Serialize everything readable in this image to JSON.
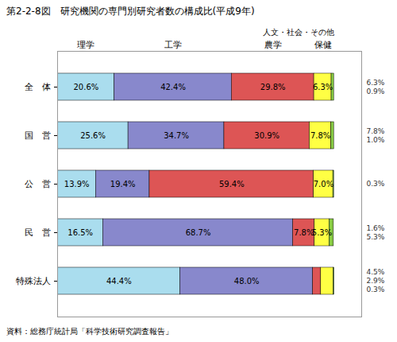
{
  "chart_data": {
    "type": "bar",
    "orientation": "horizontal",
    "stacked": true,
    "title": "第2-2-8図　研究機関の専門別研究者数の構成比(平成9年)",
    "source": "資料：総務庁統計局「科学技術研究調査報告」",
    "categories": [
      "全　体",
      "国　営",
      "公　営",
      "民　営",
      "特殊法人"
    ],
    "series": [
      {
        "name": "理学",
        "color": "#aaddee",
        "values": [
          20.6,
          25.6,
          13.9,
          16.5,
          44.4
        ],
        "value_labels": [
          "20.6%",
          "25.6%",
          "13.9%",
          "16.5%",
          "44.4%"
        ]
      },
      {
        "name": "工学",
        "color": "#8888cc",
        "values": [
          42.4,
          34.7,
          19.4,
          68.7,
          48.0
        ],
        "value_labels": [
          "42.4%",
          "34.7%",
          "19.4%",
          "68.7%",
          "48.0%"
        ]
      },
      {
        "name": "農学",
        "color": "#dd5555",
        "values": [
          29.8,
          30.9,
          59.4,
          7.8,
          2.9
        ],
        "value_labels": [
          "29.8%",
          "30.9%",
          "59.4%",
          "7.8%",
          null
        ]
      },
      {
        "name": "保健",
        "color": "#ffff44",
        "values": [
          6.3,
          7.8,
          7.0,
          5.3,
          4.5
        ],
        "value_labels": [
          "6.3%",
          "7.8%",
          "7.0%",
          "5.3%",
          null
        ]
      },
      {
        "name": "人文・社会・その他",
        "color": "#88cc44",
        "values": [
          0.9,
          1.0,
          0.3,
          1.6,
          0.3
        ],
        "value_labels": [
          null,
          null,
          null,
          null,
          null
        ]
      }
    ],
    "annotations": [
      {
        "category": "全　体",
        "text": "6.3%"
      },
      {
        "category": "全　体",
        "text": "0.9%"
      },
      {
        "category": "国　営",
        "text": "7.8%"
      },
      {
        "category": "国　営",
        "text": "1.0%"
      },
      {
        "category": "公　営",
        "text": "0.3%"
      },
      {
        "category": "民　営",
        "text": "1.6%"
      },
      {
        "category": "民　営",
        "text": "5.3%"
      },
      {
        "category": "特殊法人",
        "text": "4.5%"
      },
      {
        "category": "特殊法人",
        "text": "2.9%"
      },
      {
        "category": "特殊法人",
        "text": "0.3%"
      }
    ],
    "xlim": [
      0,
      110
    ],
    "data_labels": true,
    "tick_labels": "y",
    "grid": false
  }
}
